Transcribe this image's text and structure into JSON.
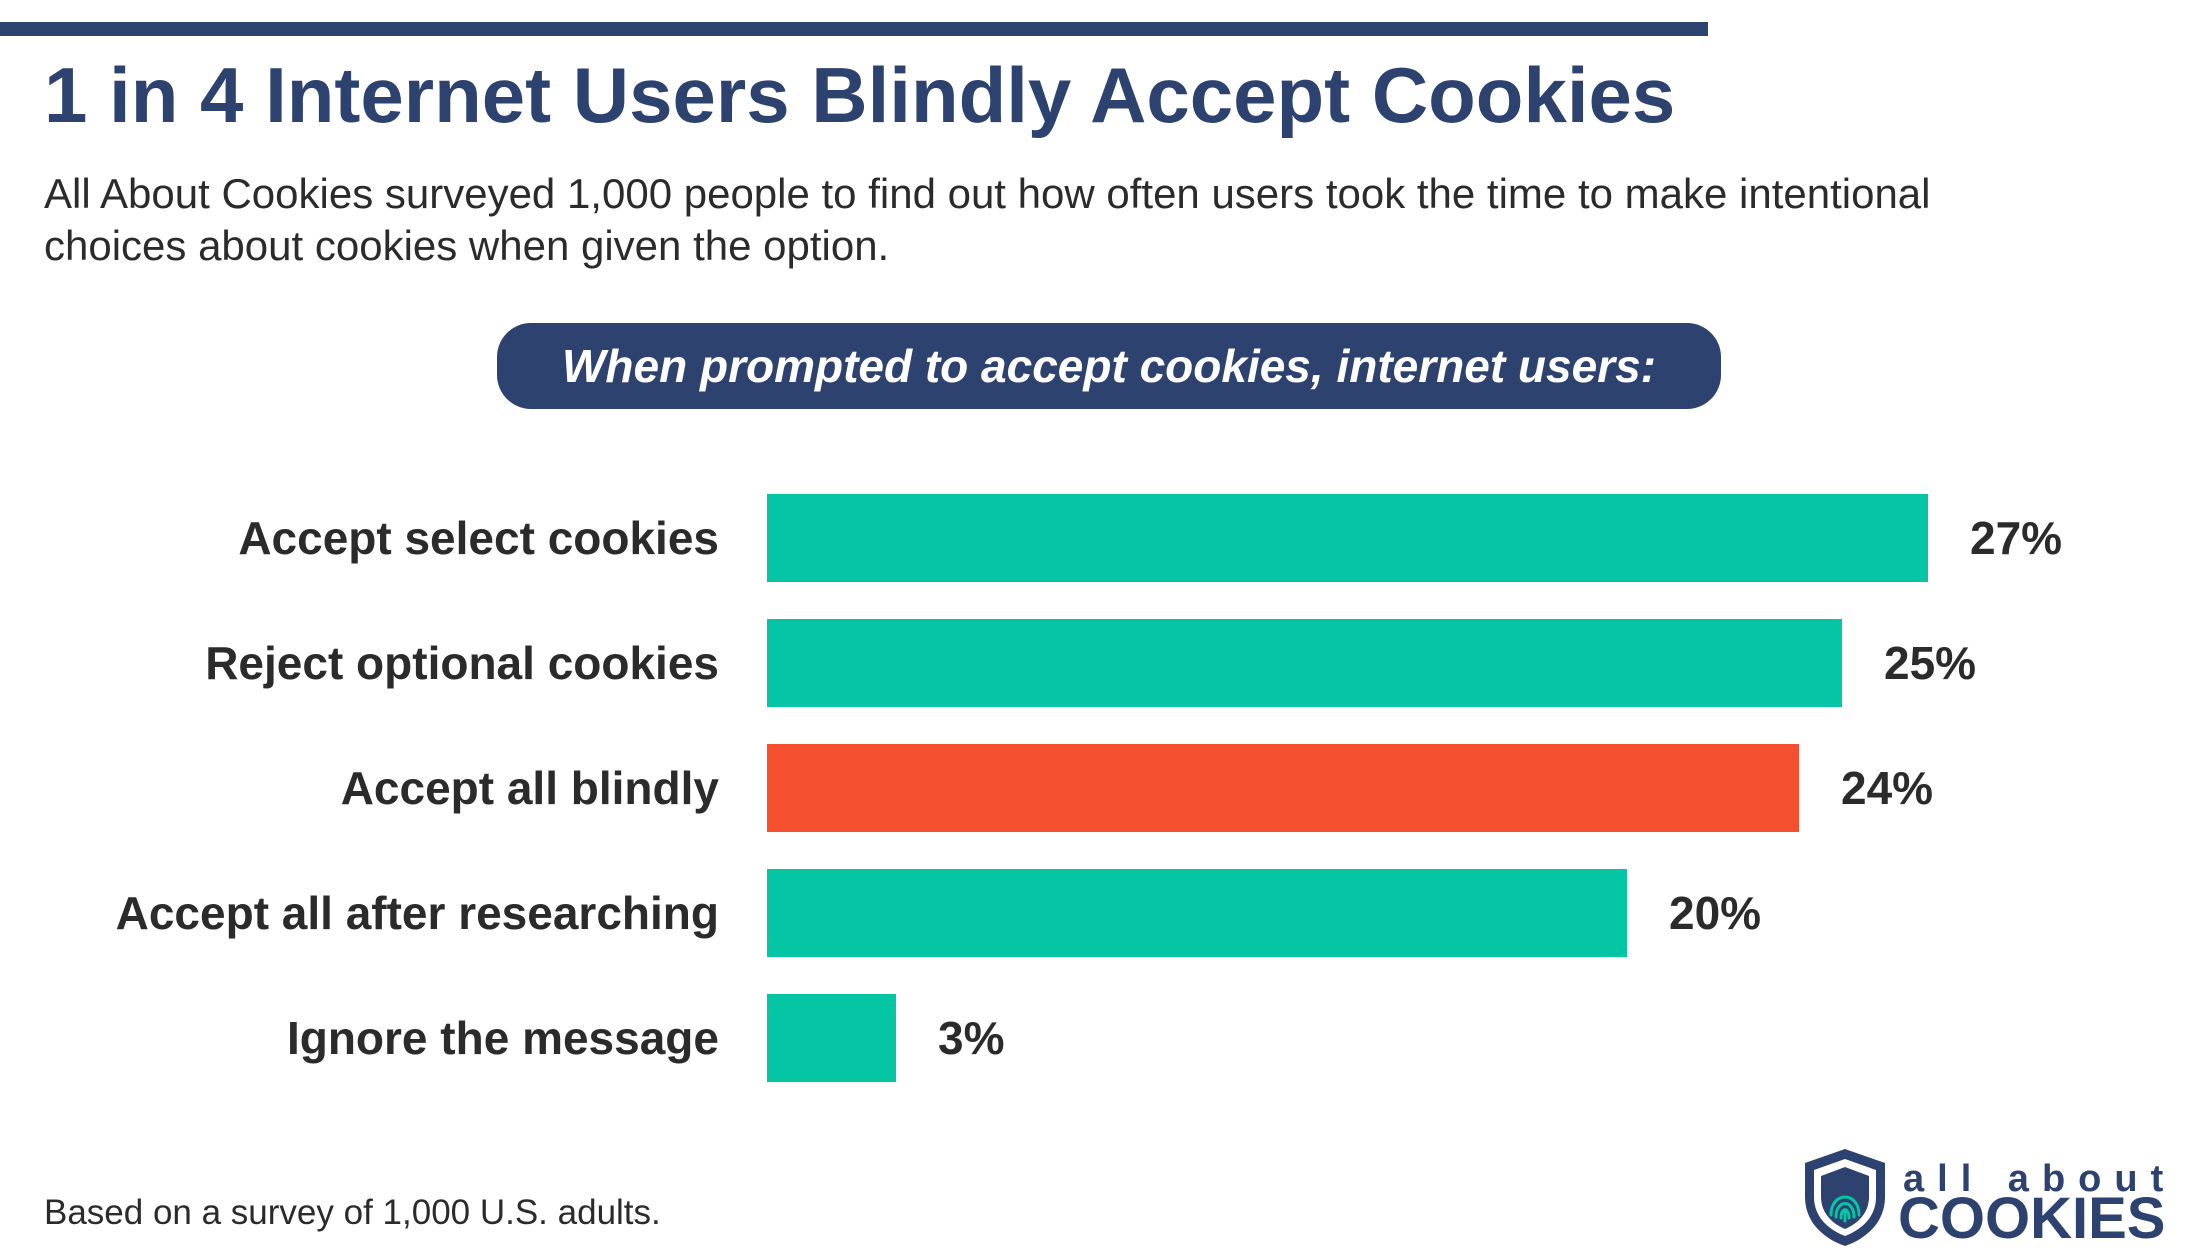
{
  "title": "1 in 4 Internet Users Blindly Accept Cookies",
  "subtitle": "All About Cookies surveyed 1,000 people to find out how often users took the time to make intentional choices about cookies when given the option.",
  "chart_header": "When prompted to accept cookies, internet users:",
  "footnote": "Based on a survey of 1,000 U.S. adults.",
  "logo": {
    "small": "all about",
    "big": "COOKIES",
    "icon": "shield-fingerprint-icon"
  },
  "colors": {
    "primary": "#2e4270",
    "bar": "#04c6a4",
    "highlight": "#f44f2e",
    "label": "#2b2b2b"
  },
  "chart_data": {
    "type": "bar",
    "orientation": "horizontal",
    "title": "When prompted to accept cookies, internet users:",
    "categories": [
      "Accept select cookies",
      "Reject optional cookies",
      "Accept all blindly",
      "Accept all after researching",
      "Ignore the message"
    ],
    "values": [
      27,
      25,
      24,
      20,
      3
    ],
    "value_labels": [
      "27%",
      "25%",
      "24%",
      "20%",
      "3%"
    ],
    "highlight_index": 2,
    "xlim": [
      0,
      27
    ],
    "unit": "%",
    "xlabel": "",
    "ylabel": "",
    "grid": false,
    "legend": "none"
  }
}
